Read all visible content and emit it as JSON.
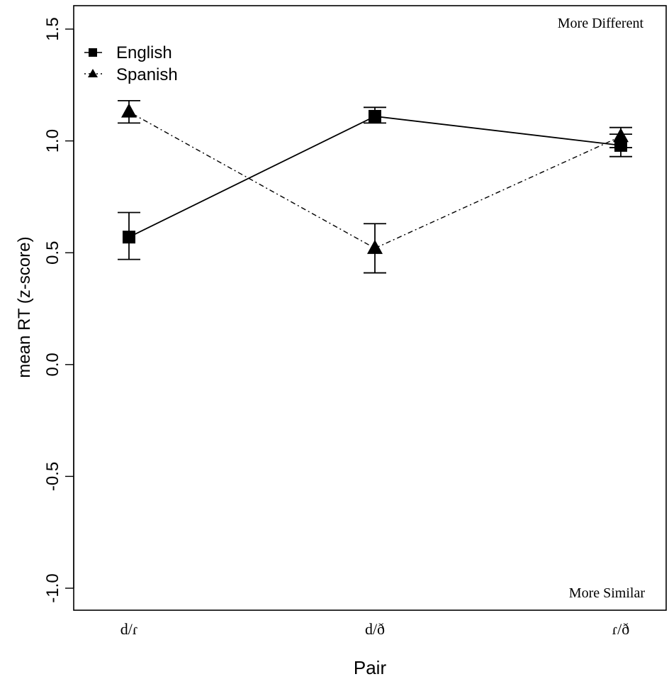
{
  "chart_data": {
    "type": "line",
    "title": "",
    "xlabel": "Pair",
    "ylabel": "mean RT (z-score)",
    "categories": [
      "d/ɾ",
      "d/ð",
      "ɾ/ð"
    ],
    "ylim": [
      -1.0,
      1.5
    ],
    "yticks": [
      -1.0,
      -0.5,
      0.0,
      0.5,
      1.0,
      1.5
    ],
    "ytick_labels": [
      "-1.0",
      "-0.5",
      "0.0",
      "0.5",
      "1.0",
      "1.5"
    ],
    "grid": false,
    "legend_position": "top-left",
    "annotations": {
      "top": "More Different",
      "bottom": "More Similar"
    },
    "series": [
      {
        "name": "English",
        "marker": "square",
        "line_style": "solid",
        "color": "#000000",
        "values": [
          0.57,
          1.11,
          0.98
        ],
        "error_low": [
          0.47,
          1.08,
          0.93
        ],
        "error_high": [
          0.68,
          1.15,
          1.03
        ]
      },
      {
        "name": "Spanish",
        "marker": "triangle",
        "line_style": "dotdash",
        "color": "#000000",
        "values": [
          1.13,
          0.52,
          1.02
        ],
        "error_low": [
          1.08,
          0.41,
          0.97
        ],
        "error_high": [
          1.18,
          0.63,
          1.06
        ]
      }
    ]
  }
}
